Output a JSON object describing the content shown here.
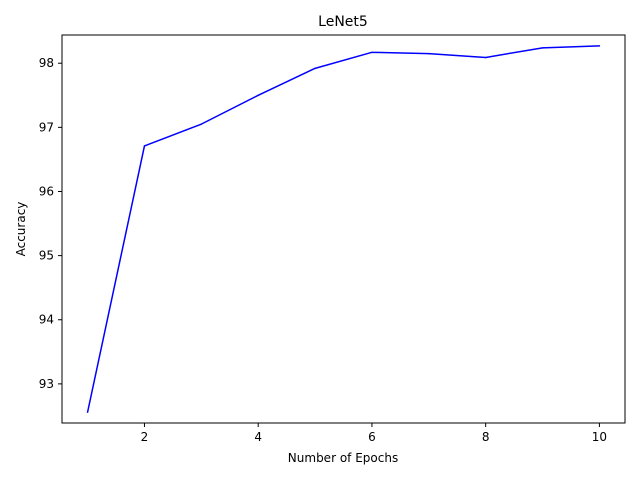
{
  "chart_data": {
    "type": "line",
    "title": "LeNet5",
    "xlabel": "Number of Epochs",
    "ylabel": "Accuracy",
    "xlim": [
      0.55,
      10.45
    ],
    "ylim": [
      92.39,
      98.44
    ],
    "xticks": [
      2,
      4,
      6,
      8,
      10
    ],
    "yticks": [
      93,
      94,
      95,
      96,
      97,
      98
    ],
    "grid": false,
    "series": [
      {
        "color": "#0000ff",
        "x": [
          1,
          2,
          3,
          4,
          5,
          6,
          7,
          8,
          9,
          10
        ],
        "y": [
          92.56,
          96.71,
          97.05,
          97.5,
          97.92,
          98.17,
          98.15,
          98.09,
          98.24,
          98.27
        ]
      }
    ]
  }
}
